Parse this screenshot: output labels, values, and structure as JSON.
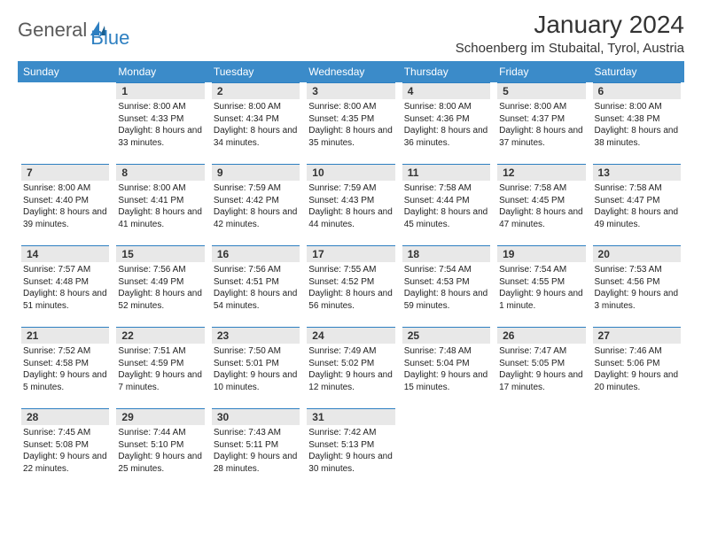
{
  "logo": {
    "general": "General",
    "blue": "Blue"
  },
  "title": "January 2024",
  "location": "Schoenberg im Stubaital, Tyrol, Austria",
  "colors": {
    "header_bg": "#3b8bc9",
    "header_text": "#ffffff",
    "daynum_bg": "#e8e8e8",
    "border_top": "#2d7fc1",
    "logo_gray": "#5a5a5a",
    "logo_blue": "#2d7fc1"
  },
  "weekdays": [
    "Sunday",
    "Monday",
    "Tuesday",
    "Wednesday",
    "Thursday",
    "Friday",
    "Saturday"
  ],
  "weeks": [
    [
      {
        "day": "",
        "sunrise": "",
        "sunset": "",
        "daylight": ""
      },
      {
        "day": "1",
        "sunrise": "Sunrise: 8:00 AM",
        "sunset": "Sunset: 4:33 PM",
        "daylight": "Daylight: 8 hours and 33 minutes."
      },
      {
        "day": "2",
        "sunrise": "Sunrise: 8:00 AM",
        "sunset": "Sunset: 4:34 PM",
        "daylight": "Daylight: 8 hours and 34 minutes."
      },
      {
        "day": "3",
        "sunrise": "Sunrise: 8:00 AM",
        "sunset": "Sunset: 4:35 PM",
        "daylight": "Daylight: 8 hours and 35 minutes."
      },
      {
        "day": "4",
        "sunrise": "Sunrise: 8:00 AM",
        "sunset": "Sunset: 4:36 PM",
        "daylight": "Daylight: 8 hours and 36 minutes."
      },
      {
        "day": "5",
        "sunrise": "Sunrise: 8:00 AM",
        "sunset": "Sunset: 4:37 PM",
        "daylight": "Daylight: 8 hours and 37 minutes."
      },
      {
        "day": "6",
        "sunrise": "Sunrise: 8:00 AM",
        "sunset": "Sunset: 4:38 PM",
        "daylight": "Daylight: 8 hours and 38 minutes."
      }
    ],
    [
      {
        "day": "7",
        "sunrise": "Sunrise: 8:00 AM",
        "sunset": "Sunset: 4:40 PM",
        "daylight": "Daylight: 8 hours and 39 minutes."
      },
      {
        "day": "8",
        "sunrise": "Sunrise: 8:00 AM",
        "sunset": "Sunset: 4:41 PM",
        "daylight": "Daylight: 8 hours and 41 minutes."
      },
      {
        "day": "9",
        "sunrise": "Sunrise: 7:59 AM",
        "sunset": "Sunset: 4:42 PM",
        "daylight": "Daylight: 8 hours and 42 minutes."
      },
      {
        "day": "10",
        "sunrise": "Sunrise: 7:59 AM",
        "sunset": "Sunset: 4:43 PM",
        "daylight": "Daylight: 8 hours and 44 minutes."
      },
      {
        "day": "11",
        "sunrise": "Sunrise: 7:58 AM",
        "sunset": "Sunset: 4:44 PM",
        "daylight": "Daylight: 8 hours and 45 minutes."
      },
      {
        "day": "12",
        "sunrise": "Sunrise: 7:58 AM",
        "sunset": "Sunset: 4:45 PM",
        "daylight": "Daylight: 8 hours and 47 minutes."
      },
      {
        "day": "13",
        "sunrise": "Sunrise: 7:58 AM",
        "sunset": "Sunset: 4:47 PM",
        "daylight": "Daylight: 8 hours and 49 minutes."
      }
    ],
    [
      {
        "day": "14",
        "sunrise": "Sunrise: 7:57 AM",
        "sunset": "Sunset: 4:48 PM",
        "daylight": "Daylight: 8 hours and 51 minutes."
      },
      {
        "day": "15",
        "sunrise": "Sunrise: 7:56 AM",
        "sunset": "Sunset: 4:49 PM",
        "daylight": "Daylight: 8 hours and 52 minutes."
      },
      {
        "day": "16",
        "sunrise": "Sunrise: 7:56 AM",
        "sunset": "Sunset: 4:51 PM",
        "daylight": "Daylight: 8 hours and 54 minutes."
      },
      {
        "day": "17",
        "sunrise": "Sunrise: 7:55 AM",
        "sunset": "Sunset: 4:52 PM",
        "daylight": "Daylight: 8 hours and 56 minutes."
      },
      {
        "day": "18",
        "sunrise": "Sunrise: 7:54 AM",
        "sunset": "Sunset: 4:53 PM",
        "daylight": "Daylight: 8 hours and 59 minutes."
      },
      {
        "day": "19",
        "sunrise": "Sunrise: 7:54 AM",
        "sunset": "Sunset: 4:55 PM",
        "daylight": "Daylight: 9 hours and 1 minute."
      },
      {
        "day": "20",
        "sunrise": "Sunrise: 7:53 AM",
        "sunset": "Sunset: 4:56 PM",
        "daylight": "Daylight: 9 hours and 3 minutes."
      }
    ],
    [
      {
        "day": "21",
        "sunrise": "Sunrise: 7:52 AM",
        "sunset": "Sunset: 4:58 PM",
        "daylight": "Daylight: 9 hours and 5 minutes."
      },
      {
        "day": "22",
        "sunrise": "Sunrise: 7:51 AM",
        "sunset": "Sunset: 4:59 PM",
        "daylight": "Daylight: 9 hours and 7 minutes."
      },
      {
        "day": "23",
        "sunrise": "Sunrise: 7:50 AM",
        "sunset": "Sunset: 5:01 PM",
        "daylight": "Daylight: 9 hours and 10 minutes."
      },
      {
        "day": "24",
        "sunrise": "Sunrise: 7:49 AM",
        "sunset": "Sunset: 5:02 PM",
        "daylight": "Daylight: 9 hours and 12 minutes."
      },
      {
        "day": "25",
        "sunrise": "Sunrise: 7:48 AM",
        "sunset": "Sunset: 5:04 PM",
        "daylight": "Daylight: 9 hours and 15 minutes."
      },
      {
        "day": "26",
        "sunrise": "Sunrise: 7:47 AM",
        "sunset": "Sunset: 5:05 PM",
        "daylight": "Daylight: 9 hours and 17 minutes."
      },
      {
        "day": "27",
        "sunrise": "Sunrise: 7:46 AM",
        "sunset": "Sunset: 5:06 PM",
        "daylight": "Daylight: 9 hours and 20 minutes."
      }
    ],
    [
      {
        "day": "28",
        "sunrise": "Sunrise: 7:45 AM",
        "sunset": "Sunset: 5:08 PM",
        "daylight": "Daylight: 9 hours and 22 minutes."
      },
      {
        "day": "29",
        "sunrise": "Sunrise: 7:44 AM",
        "sunset": "Sunset: 5:10 PM",
        "daylight": "Daylight: 9 hours and 25 minutes."
      },
      {
        "day": "30",
        "sunrise": "Sunrise: 7:43 AM",
        "sunset": "Sunset: 5:11 PM",
        "daylight": "Daylight: 9 hours and 28 minutes."
      },
      {
        "day": "31",
        "sunrise": "Sunrise: 7:42 AM",
        "sunset": "Sunset: 5:13 PM",
        "daylight": "Daylight: 9 hours and 30 minutes."
      },
      {
        "day": "",
        "sunrise": "",
        "sunset": "",
        "daylight": ""
      },
      {
        "day": "",
        "sunrise": "",
        "sunset": "",
        "daylight": ""
      },
      {
        "day": "",
        "sunrise": "",
        "sunset": "",
        "daylight": ""
      }
    ]
  ]
}
